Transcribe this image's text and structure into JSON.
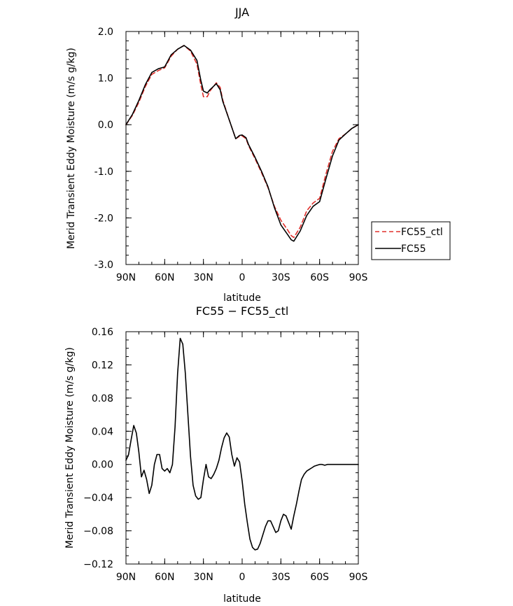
{
  "chart_data": [
    {
      "type": "line",
      "title": "JJA",
      "xlabel": "latitude",
      "ylabel": "Merid Transient Eddy Moisture (m/s g/kg)",
      "x_tick_labels": [
        "90N",
        "60N",
        "30N",
        "0",
        "30S",
        "60S",
        "90S"
      ],
      "x_ticks": [
        90,
        60,
        30,
        0,
        -30,
        -60,
        -90
      ],
      "xlim": [
        90,
        -90
      ],
      "y_tick_labels": [
        "2.0",
        "1.0",
        "0.0",
        "-1.0",
        "-2.0",
        "-3.0"
      ],
      "y_ticks": [
        2,
        1,
        0,
        -1,
        -2,
        -3
      ],
      "ylim": [
        -3,
        2
      ],
      "legend": {
        "placement": "right",
        "entries": [
          "FC55_ctl",
          "FC55"
        ]
      },
      "series": [
        {
          "name": "FC55_ctl",
          "color": "#e0302c",
          "dash": true,
          "x": [
            90,
            85,
            80,
            75,
            70,
            65,
            60,
            55,
            50,
            45,
            40,
            35,
            32,
            30,
            27,
            25,
            20,
            17,
            15,
            10,
            5,
            2,
            0,
            -3,
            -5,
            -10,
            -15,
            -20,
            -25,
            -30,
            -35,
            -38,
            -40,
            -45,
            -50,
            -55,
            -60,
            -65,
            -70,
            -75,
            -80,
            -85,
            -90
          ],
          "y": [
            0.0,
            0.2,
            0.48,
            0.82,
            1.08,
            1.16,
            1.22,
            1.47,
            1.62,
            1.7,
            1.58,
            1.3,
            0.85,
            0.6,
            0.6,
            0.72,
            0.9,
            0.8,
            0.53,
            0.1,
            -0.3,
            -0.25,
            -0.24,
            -0.3,
            -0.45,
            -0.73,
            -1.03,
            -1.35,
            -1.75,
            -2.05,
            -2.25,
            -2.38,
            -2.42,
            -2.2,
            -1.85,
            -1.68,
            -1.58,
            -1.05,
            -0.57,
            -0.3,
            -0.2,
            -0.08,
            0.0
          ]
        },
        {
          "name": "FC55",
          "color": "#000000",
          "dash": false,
          "x": [
            90,
            85,
            80,
            75,
            70,
            65,
            60,
            55,
            50,
            45,
            40,
            35,
            32,
            30,
            27,
            25,
            20,
            17,
            15,
            10,
            5,
            2,
            0,
            -3,
            -5,
            -10,
            -15,
            -20,
            -25,
            -30,
            -35,
            -38,
            -40,
            -45,
            -50,
            -55,
            -60,
            -65,
            -70,
            -75,
            -80,
            -85,
            -90
          ],
          "y": [
            0.0,
            0.22,
            0.52,
            0.86,
            1.12,
            1.2,
            1.24,
            1.5,
            1.62,
            1.7,
            1.6,
            1.38,
            0.95,
            0.72,
            0.68,
            0.75,
            0.88,
            0.75,
            0.5,
            0.1,
            -0.3,
            -0.23,
            -0.22,
            -0.28,
            -0.43,
            -0.7,
            -1.0,
            -1.33,
            -1.78,
            -2.15,
            -2.35,
            -2.47,
            -2.5,
            -2.28,
            -1.95,
            -1.75,
            -1.65,
            -1.15,
            -0.67,
            -0.33,
            -0.2,
            -0.08,
            0.0
          ]
        }
      ]
    },
    {
      "type": "line",
      "title": "FC55 − FC55_ctl",
      "xlabel": "latitude",
      "ylabel": "Merid Transient Eddy Moisture (m/s g/kg)",
      "x_tick_labels": [
        "90N",
        "60N",
        "30N",
        "0",
        "30S",
        "60S",
        "90S"
      ],
      "x_ticks": [
        90,
        60,
        30,
        0,
        -30,
        -60,
        -90
      ],
      "xlim": [
        90,
        -90
      ],
      "y_tick_labels": [
        "0.16",
        "0.12",
        "0.08",
        "0.04",
        "0.00",
        "−0.04",
        "−0.08",
        "−0.12"
      ],
      "y_ticks": [
        0.16,
        0.12,
        0.08,
        0.04,
        0.0,
        -0.04,
        -0.08,
        -0.12
      ],
      "ylim": [
        -0.12,
        0.16
      ],
      "series": [
        {
          "color": "#000000",
          "x": [
            90,
            88,
            86,
            84,
            82,
            80,
            78,
            76,
            74,
            72,
            70,
            68,
            66,
            64,
            62,
            60,
            58,
            56,
            54,
            52,
            50,
            48,
            46,
            44,
            42,
            40,
            38,
            36,
            34,
            32,
            30,
            28,
            26,
            24,
            22,
            20,
            18,
            16,
            14,
            12,
            10,
            8,
            6,
            4,
            2,
            0,
            -2,
            -4,
            -6,
            -8,
            -10,
            -12,
            -14,
            -16,
            -18,
            -20,
            -22,
            -24,
            -26,
            -28,
            -30,
            -32,
            -34,
            -36,
            -38,
            -40,
            -42,
            -44,
            -46,
            -48,
            -50,
            -52,
            -54,
            -56,
            -58,
            -60,
            -62,
            -64,
            -66,
            -68,
            -70,
            -72,
            -74,
            -76,
            -78,
            -80,
            -82,
            -84,
            -86,
            -88,
            -90
          ],
          "y": [
            0.005,
            0.012,
            0.03,
            0.047,
            0.038,
            0.015,
            -0.015,
            -0.007,
            -0.018,
            -0.035,
            -0.025,
            0.0,
            0.012,
            0.012,
            -0.005,
            -0.008,
            -0.005,
            -0.01,
            0.0,
            0.045,
            0.11,
            0.152,
            0.145,
            0.11,
            0.06,
            0.01,
            -0.025,
            -0.038,
            -0.042,
            -0.04,
            -0.018,
            0.0,
            -0.015,
            -0.017,
            -0.012,
            -0.005,
            0.005,
            0.02,
            0.032,
            0.038,
            0.033,
            0.012,
            -0.002,
            0.008,
            0.003,
            -0.02,
            -0.048,
            -0.07,
            -0.09,
            -0.1,
            -0.103,
            -0.102,
            -0.095,
            -0.085,
            -0.075,
            -0.068,
            -0.068,
            -0.075,
            -0.082,
            -0.08,
            -0.068,
            -0.06,
            -0.062,
            -0.07,
            -0.078,
            -0.062,
            -0.048,
            -0.032,
            -0.018,
            -0.012,
            -0.008,
            -0.006,
            -0.004,
            -0.002,
            -0.001,
            0.0,
            0.0,
            -0.001,
            0.0,
            0.0,
            0.0,
            0.0,
            0.0,
            0.0,
            0.0,
            0.0,
            0.0,
            0.0,
            0.0,
            0.0,
            0.0
          ]
        }
      ]
    }
  ]
}
